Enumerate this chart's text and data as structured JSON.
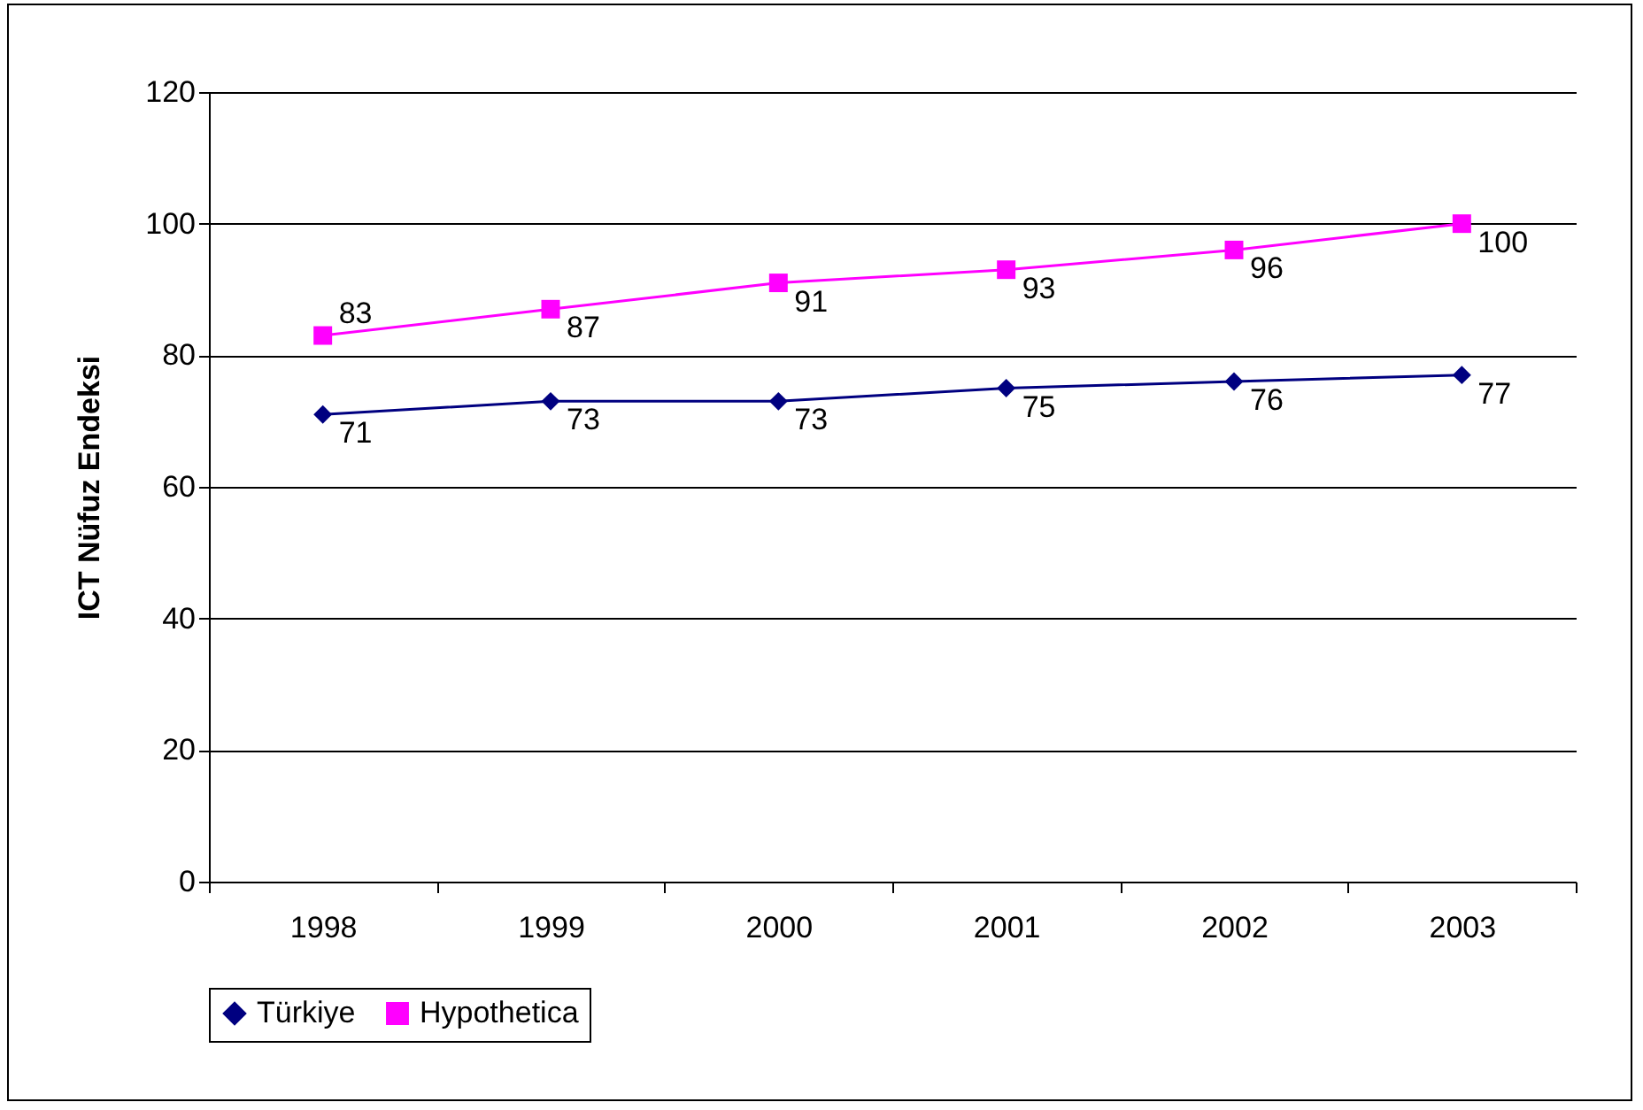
{
  "chart_data": {
    "type": "line",
    "ylabel": "ICT Nüfuz Endeksi",
    "categories": [
      "1998",
      "1999",
      "2000",
      "2001",
      "2002",
      "2003"
    ],
    "series": [
      {
        "name": "Türkiye",
        "color": "#000080",
        "marker": "diamond",
        "values": [
          71,
          73,
          73,
          75,
          76,
          77
        ]
      },
      {
        "name": "Hypothetica",
        "color": "#ff00ff",
        "marker": "square",
        "values": [
          83,
          87,
          91,
          93,
          96,
          100
        ]
      }
    ],
    "ylim": [
      0,
      120
    ],
    "yticks": [
      0,
      20,
      40,
      60,
      80,
      100,
      120
    ],
    "grid": "y",
    "legend": "bottom",
    "data_labels": true,
    "line_style": "solid"
  }
}
